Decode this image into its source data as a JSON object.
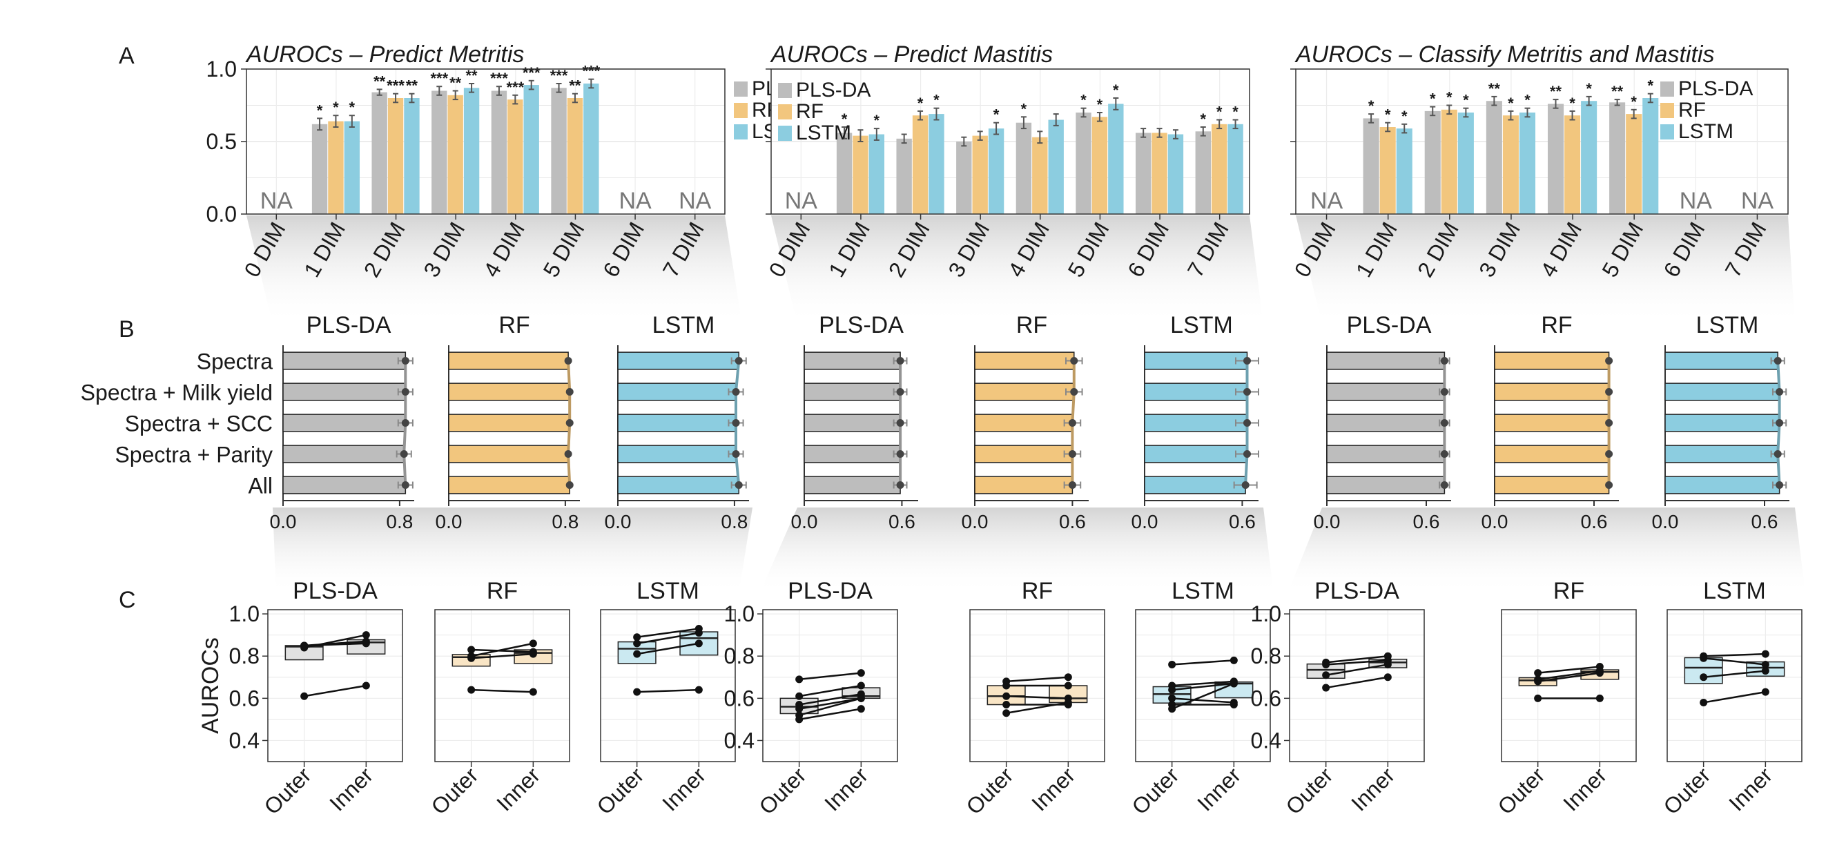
{
  "colors": {
    "PLS-DA": "#bdbdbd",
    "RF": "#f2c67e",
    "LSTM": "#8ccde0"
  },
  "chart_data": {
    "panel_a": {
      "letter": "A",
      "type": "bar",
      "ylim": [
        0,
        1
      ],
      "yticks": [
        "0.0",
        "0.5",
        "1.0"
      ],
      "legend": [
        "PLS-DA",
        "RF",
        "LSTM"
      ],
      "na_label": "NA",
      "charts": [
        {
          "title": "AUROCs – Predict Metritis",
          "legend_position": "right-outside",
          "categories": [
            "0 DIM",
            "1 DIM",
            "2 DIM",
            "3 DIM",
            "4 DIM",
            "5 DIM",
            "6 DIM",
            "7 DIM"
          ],
          "series": [
            {
              "name": "PLS-DA",
              "values": [
                null,
                0.62,
                0.84,
                0.85,
                0.85,
                0.87,
                null,
                null
              ],
              "errors": [
                null,
                0.04,
                0.02,
                0.03,
                0.03,
                0.03,
                null,
                null
              ],
              "stars": [
                "",
                "*",
                "**",
                "***",
                "***",
                "***",
                "",
                ""
              ]
            },
            {
              "name": "RF",
              "values": [
                null,
                0.64,
                0.8,
                0.82,
                0.79,
                0.8,
                null,
                null
              ],
              "errors": [
                null,
                0.04,
                0.03,
                0.03,
                0.03,
                0.03,
                null,
                null
              ],
              "stars": [
                "",
                "*",
                "***",
                "**",
                "***",
                "**",
                "",
                ""
              ]
            },
            {
              "name": "LSTM",
              "values": [
                null,
                0.64,
                0.8,
                0.87,
                0.89,
                0.9,
                null,
                null
              ],
              "errors": [
                null,
                0.04,
                0.03,
                0.03,
                0.03,
                0.03,
                null,
                null
              ],
              "stars": [
                "",
                "*",
                "**",
                "**",
                "***",
                "***",
                "",
                ""
              ]
            }
          ]
        },
        {
          "title": "AUROCs – Predict Mastitis",
          "legend_position": "top-left-inside",
          "categories": [
            "0 DIM",
            "1 DIM",
            "2 DIM",
            "3 DIM",
            "4 DIM",
            "5 DIM",
            "6 DIM",
            "7 DIM"
          ],
          "series": [
            {
              "name": "PLS-DA",
              "values": [
                null,
                0.56,
                0.52,
                0.5,
                0.63,
                0.7,
                0.56,
                0.57
              ],
              "errors": [
                null,
                0.04,
                0.03,
                0.03,
                0.04,
                0.03,
                0.03,
                0.03
              ],
              "stars": [
                "",
                "*",
                "",
                "",
                "*",
                "*",
                "",
                "*"
              ]
            },
            {
              "name": "RF",
              "values": [
                null,
                0.54,
                0.68,
                0.54,
                0.53,
                0.67,
                0.56,
                0.62
              ],
              "errors": [
                null,
                0.04,
                0.03,
                0.03,
                0.04,
                0.03,
                0.03,
                0.03
              ],
              "stars": [
                "",
                "",
                "*",
                "",
                "",
                "*",
                "",
                "*"
              ]
            },
            {
              "name": "LSTM",
              "values": [
                null,
                0.55,
                0.69,
                0.59,
                0.65,
                0.76,
                0.55,
                0.62
              ],
              "errors": [
                null,
                0.04,
                0.04,
                0.04,
                0.04,
                0.04,
                0.03,
                0.03
              ],
              "stars": [
                "",
                "*",
                "*",
                "*",
                "",
                "*",
                "",
                "*"
              ]
            }
          ]
        },
        {
          "title": "AUROCs – Classify Metritis and Mastitis",
          "legend_position": "right-outside",
          "categories": [
            "0 DIM",
            "1 DIM",
            "2 DIM",
            "3 DIM",
            "4 DIM",
            "5 DIM",
            "6 DIM",
            "7 DIM"
          ],
          "series": [
            {
              "name": "PLS-DA",
              "values": [
                null,
                0.66,
                0.71,
                0.78,
                0.76,
                0.77,
                null,
                null
              ],
              "errors": [
                null,
                0.03,
                0.03,
                0.03,
                0.03,
                0.02,
                null,
                null
              ],
              "stars": [
                "",
                "*",
                "*",
                "**",
                "**",
                "**",
                "",
                ""
              ]
            },
            {
              "name": "RF",
              "values": [
                null,
                0.6,
                0.72,
                0.68,
                0.68,
                0.69,
                null,
                null
              ],
              "errors": [
                null,
                0.03,
                0.03,
                0.03,
                0.03,
                0.03,
                null,
                null
              ],
              "stars": [
                "",
                "*",
                "*",
                "*",
                "*",
                "*",
                "",
                ""
              ]
            },
            {
              "name": "LSTM",
              "values": [
                null,
                0.59,
                0.7,
                0.7,
                0.78,
                0.8,
                null,
                null
              ],
              "errors": [
                null,
                0.03,
                0.03,
                0.03,
                0.03,
                0.03,
                null,
                null
              ],
              "stars": [
                "",
                "*",
                "*",
                "*",
                "*",
                "*",
                "",
                ""
              ]
            }
          ]
        }
      ]
    },
    "panel_b": {
      "letter": "B",
      "type": "bar",
      "orientation": "horizontal",
      "categories": [
        "Spectra",
        "Spectra + Milk yield",
        "Spectra + SCC",
        "Spectra + Parity",
        "All"
      ],
      "groups": [
        {
          "xlim": [
            0,
            0.9
          ],
          "xticks": [
            0.0,
            0.8
          ],
          "xtick_labels": [
            "0.0",
            "0.8"
          ],
          "models": [
            {
              "name": "PLS-DA",
              "values": [
                0.84,
                0.84,
                0.84,
                0.83,
                0.84
              ],
              "errors": [
                0.05,
                0.05,
                0.05,
                0.05,
                0.05
              ]
            },
            {
              "name": "RF",
              "values": [
                0.82,
                0.83,
                0.83,
                0.82,
                0.83
              ],
              "errors": [
                0.0,
                0.0,
                0.0,
                0.0,
                0.0
              ]
            },
            {
              "name": "LSTM",
              "values": [
                0.83,
                0.81,
                0.81,
                0.81,
                0.83
              ],
              "errors": [
                0.05,
                0.05,
                0.05,
                0.05,
                0.05
              ]
            }
          ]
        },
        {
          "xlim": [
            0,
            0.7
          ],
          "xticks": [
            0.0,
            0.6
          ],
          "xtick_labels": [
            "0.0",
            "0.6"
          ],
          "models": [
            {
              "name": "PLS-DA",
              "values": [
                0.59,
                0.59,
                0.59,
                0.59,
                0.59
              ],
              "errors": [
                0.04,
                0.04,
                0.04,
                0.04,
                0.04
              ]
            },
            {
              "name": "RF",
              "values": [
                0.61,
                0.61,
                0.6,
                0.6,
                0.6
              ],
              "errors": [
                0.05,
                0.05,
                0.05,
                0.05,
                0.05
              ]
            },
            {
              "name": "LSTM",
              "values": [
                0.63,
                0.63,
                0.63,
                0.63,
                0.62
              ],
              "errors": [
                0.07,
                0.07,
                0.07,
                0.07,
                0.07
              ]
            }
          ]
        },
        {
          "xlim": [
            0,
            0.75
          ],
          "xticks": [
            0.0,
            0.6
          ],
          "xtick_labels": [
            "0.0",
            "0.6"
          ],
          "models": [
            {
              "name": "PLS-DA",
              "values": [
                0.71,
                0.71,
                0.71,
                0.71,
                0.71
              ],
              "errors": [
                0.03,
                0.03,
                0.03,
                0.03,
                0.03
              ]
            },
            {
              "name": "RF",
              "values": [
                0.69,
                0.69,
                0.69,
                0.69,
                0.69
              ],
              "errors": [
                0.0,
                0.0,
                0.0,
                0.0,
                0.0
              ]
            },
            {
              "name": "LSTM",
              "values": [
                0.68,
                0.69,
                0.69,
                0.68,
                0.69
              ],
              "errors": [
                0.04,
                0.04,
                0.04,
                0.04,
                0.04
              ]
            }
          ]
        }
      ]
    },
    "panel_c": {
      "letter": "C",
      "type": "box-paired",
      "ylabel": "AUROCs",
      "ylim": [
        0.3,
        1.02
      ],
      "yticks": [
        "0.4",
        "0.6",
        "0.8",
        "1.0"
      ],
      "categories": [
        "Outer",
        "Inner"
      ],
      "groups": [
        {
          "models": [
            {
              "name": "PLS-DA",
              "pairs": [
                [
                  0.85,
                  0.87
                ],
                [
                  0.84,
                  0.9
                ],
                [
                  0.85,
                  0.86
                ],
                [
                  0.61,
                  0.66
                ]
              ]
            },
            {
              "name": "RF",
              "pairs": [
                [
                  0.8,
                  0.86
                ],
                [
                  0.83,
                  0.82
                ],
                [
                  0.79,
                  0.81
                ],
                [
                  0.64,
                  0.63
                ]
              ]
            },
            {
              "name": "LSTM",
              "pairs": [
                [
                  0.89,
                  0.93
                ],
                [
                  0.86,
                  0.91
                ],
                [
                  0.81,
                  0.86
                ],
                [
                  0.63,
                  0.64
                ]
              ]
            }
          ]
        },
        {
          "models": [
            {
              "name": "PLS-DA",
              "pairs": [
                [
                  0.69,
                  0.72
                ],
                [
                  0.61,
                  0.66
                ],
                [
                  0.57,
                  0.62
                ],
                [
                  0.55,
                  0.6
                ],
                [
                  0.52,
                  0.6
                ],
                [
                  0.5,
                  0.55
                ]
              ]
            },
            {
              "name": "RF",
              "pairs": [
                [
                  0.68,
                  0.7
                ],
                [
                  0.66,
                  0.66
                ],
                [
                  0.61,
                  0.6
                ],
                [
                  0.57,
                  0.57
                ],
                [
                  0.53,
                  0.58
                ]
              ]
            },
            {
              "name": "LSTM",
              "pairs": [
                [
                  0.76,
                  0.78
                ],
                [
                  0.66,
                  0.68
                ],
                [
                  0.64,
                  0.67
                ],
                [
                  0.6,
                  0.58
                ],
                [
                  0.57,
                  0.57
                ],
                [
                  0.55,
                  0.67
                ]
              ]
            }
          ]
        },
        {
          "models": [
            {
              "name": "PLS-DA",
              "pairs": [
                [
                  0.77,
                  0.8
                ],
                [
                  0.76,
                  0.78
                ],
                [
                  0.71,
                  0.76
                ],
                [
                  0.65,
                  0.7
                ]
              ]
            },
            {
              "name": "RF",
              "pairs": [
                [
                  0.72,
                  0.75
                ],
                [
                  0.69,
                  0.73
                ],
                [
                  0.68,
                  0.72
                ],
                [
                  0.6,
                  0.6
                ]
              ]
            },
            {
              "name": "LSTM",
              "pairs": [
                [
                  0.8,
                  0.81
                ],
                [
                  0.79,
                  0.76
                ],
                [
                  0.7,
                  0.73
                ],
                [
                  0.58,
                  0.63
                ]
              ]
            }
          ]
        }
      ]
    }
  }
}
